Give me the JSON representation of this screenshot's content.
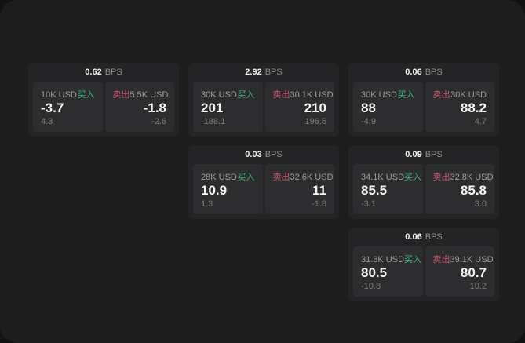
{
  "labels": {
    "bps_unit": "BPS",
    "buy": "买入",
    "sell": "卖出"
  },
  "colors": {
    "buy_green": "#3cb97d",
    "sell_red": "#c9566d",
    "window_bg": "#1d1d1e",
    "card_bg": "#242426",
    "panel_bg": "#2d2d2f"
  },
  "cards": [
    {
      "row": 1,
      "col": 1,
      "bps": "0.62",
      "buy": {
        "amount": "10K USD",
        "price": "-3.7",
        "sub": "4.3"
      },
      "sell": {
        "amount": "5.5K USD",
        "price": "-1.8",
        "sub": "-2.6"
      }
    },
    {
      "row": 1,
      "col": 2,
      "bps": "2.92",
      "buy": {
        "amount": "30K USD",
        "price": "201",
        "sub": "-188.1"
      },
      "sell": {
        "amount": "30.1K USD",
        "price": "210",
        "sub": "196.5"
      }
    },
    {
      "row": 1,
      "col": 3,
      "bps": "0.06",
      "buy": {
        "amount": "30K USD",
        "price": "88",
        "sub": "-4.9"
      },
      "sell": {
        "amount": "30K USD",
        "price": "88.2",
        "sub": "4.7"
      }
    },
    {
      "row": 2,
      "col": 2,
      "bps": "0.03",
      "buy": {
        "amount": "28K USD",
        "price": "10.9",
        "sub": "1.3"
      },
      "sell": {
        "amount": "32.6K USD",
        "price": "11",
        "sub": "-1.8"
      }
    },
    {
      "row": 2,
      "col": 3,
      "bps": "0.09",
      "buy": {
        "amount": "34.1K USD",
        "price": "85.5",
        "sub": "-3.1"
      },
      "sell": {
        "amount": "32.8K USD",
        "price": "85.8",
        "sub": "3.0"
      }
    },
    {
      "row": 3,
      "col": 3,
      "bps": "0.06",
      "buy": {
        "amount": "31.8K USD",
        "price": "80.5",
        "sub": "-10.8"
      },
      "sell": {
        "amount": "39.1K USD",
        "price": "80.7",
        "sub": "10.2"
      }
    }
  ]
}
